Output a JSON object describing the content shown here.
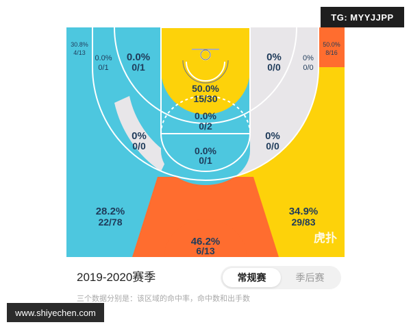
{
  "badges": {
    "top_right": "TG: MYYJJPP",
    "bottom_left": "www.shiyechen.com"
  },
  "colors": {
    "blue": "#4dc7df",
    "yellow": "#fdd20a",
    "orange": "#ff6d2f",
    "gray": "#e8e6e9",
    "text": "#1f3b5a"
  },
  "zones": {
    "corner_left": {
      "pct": "30.8%",
      "made": "4/13"
    },
    "left_wing_outer": {
      "pct": "0.0%",
      "made": "0/1"
    },
    "left_mid_top": {
      "pct": "0.0%",
      "made": "0/1"
    },
    "paint_upper": {
      "pct": "50.0%",
      "made": "15/30"
    },
    "right_mid_top": {
      "pct": "0%",
      "made": "0/0"
    },
    "right_wing_outer": {
      "pct": "0%",
      "made": "0/0"
    },
    "corner_right": {
      "pct": "50.0%",
      "made": "8/16"
    },
    "paint_lower": {
      "pct": "0.0%",
      "made": "0/2"
    },
    "left_elbow": {
      "pct": "0%",
      "made": "0/0"
    },
    "right_elbow": {
      "pct": "0%",
      "made": "0/0"
    },
    "top_key": {
      "pct": "0.0%",
      "made": "0/1"
    },
    "left_three": {
      "pct": "28.2%",
      "made": "22/78"
    },
    "right_three": {
      "pct": "34.9%",
      "made": "29/83"
    },
    "top_three": {
      "pct": "46.2%",
      "made": "6/13"
    }
  },
  "watermark": "虎扑",
  "season": "2019-2020赛季",
  "tabs": [
    {
      "label": "常规赛",
      "active": true
    },
    {
      "label": "季后赛",
      "active": false
    }
  ],
  "caption": "三个数据分别是：该区域的命中率，命中数和出手数"
}
